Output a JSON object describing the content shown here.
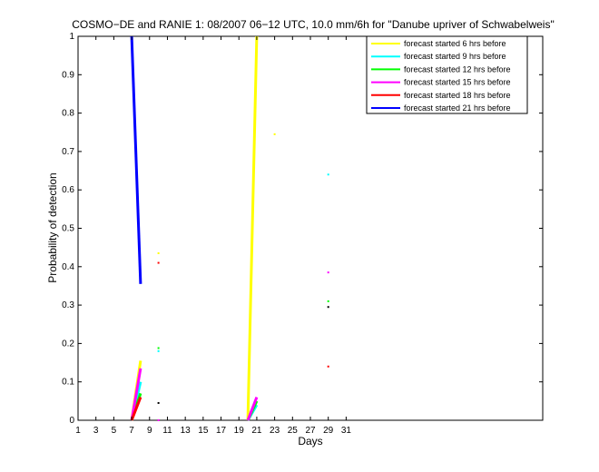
{
  "chart_data": {
    "type": "line",
    "title": "COSMO−DE and RANIE 1: 08/2007 06−12 UTC, 10.0 mm/6h for \"Danube upriver of Schwabelweis\"",
    "xlabel": "Days",
    "ylabel": "Probability of detection",
    "xlim": [
      1,
      53
    ],
    "ylim": [
      0,
      1
    ],
    "xticks": [
      1,
      3,
      5,
      7,
      9,
      11,
      13,
      15,
      17,
      19,
      21,
      23,
      25,
      27,
      29,
      31
    ],
    "yticks": [
      0,
      0.1,
      0.2,
      0.3,
      0.4,
      0.5,
      0.6,
      0.7,
      0.8,
      0.9,
      1
    ],
    "ytick_labels": [
      "0",
      "0.1",
      "0.2",
      "0.3",
      "0.4",
      "0.5",
      "0.6",
      "0.7",
      "0.8",
      "0.9",
      "1"
    ],
    "grid": false,
    "legend_position": "top-right",
    "series": [
      {
        "name": "forecast started 6 hrs before",
        "color": "#ffff00",
        "segments": [
          [
            [
              7,
              0
            ],
            [
              8,
              0.155
            ]
          ],
          [
            [
              20,
              0
            ],
            [
              21,
              1.0
            ]
          ]
        ],
        "points": [
          [
            10,
            0.435
          ],
          [
            23,
            0.745
          ]
        ]
      },
      {
        "name": "forecast started 9 hrs before",
        "color": "#00ffff",
        "segments": [
          [
            [
              7,
              0
            ],
            [
              8,
              0.1
            ]
          ],
          [
            [
              20,
              0
            ],
            [
              21,
              0.04
            ]
          ]
        ],
        "points": [
          [
            10,
            0.18
          ],
          [
            29,
            0.64
          ]
        ]
      },
      {
        "name": "forecast started 12 hrs before",
        "color": "#00ff00",
        "segments": [
          [
            [
              7,
              0
            ],
            [
              8,
              0.07
            ]
          ],
          [
            [
              20,
              0
            ],
            [
              21,
              0.05
            ]
          ]
        ],
        "points": [
          [
            10,
            0.188
          ],
          [
            29,
            0.31
          ]
        ]
      },
      {
        "name": "forecast started 15 hrs before",
        "color": "#ff00ff",
        "segments": [
          [
            [
              7,
              0
            ],
            [
              8,
              0.135
            ]
          ],
          [
            [
              20,
              0
            ],
            [
              21,
              0.06
            ]
          ]
        ],
        "points": [
          [
            10,
            0.0
          ],
          [
            29,
            0.385
          ]
        ]
      },
      {
        "name": "forecast started 18 hrs before",
        "color": "#ff0000",
        "segments": [
          [
            [
              7,
              0
            ],
            [
              8,
              0.06
            ]
          ]
        ],
        "points": [
          [
            10,
            0.41
          ],
          [
            29,
            0.14
          ]
        ]
      },
      {
        "name": "forecast started 21 hrs before",
        "color": "#0000ff",
        "segments": [
          [
            [
              7,
              1.0
            ],
            [
              8,
              0.355
            ]
          ]
        ],
        "points": []
      },
      {
        "name": "",
        "color": "#000000",
        "segments": [],
        "points": [
          [
            10,
            0.045
          ],
          [
            29,
            0.295
          ]
        ]
      }
    ]
  }
}
